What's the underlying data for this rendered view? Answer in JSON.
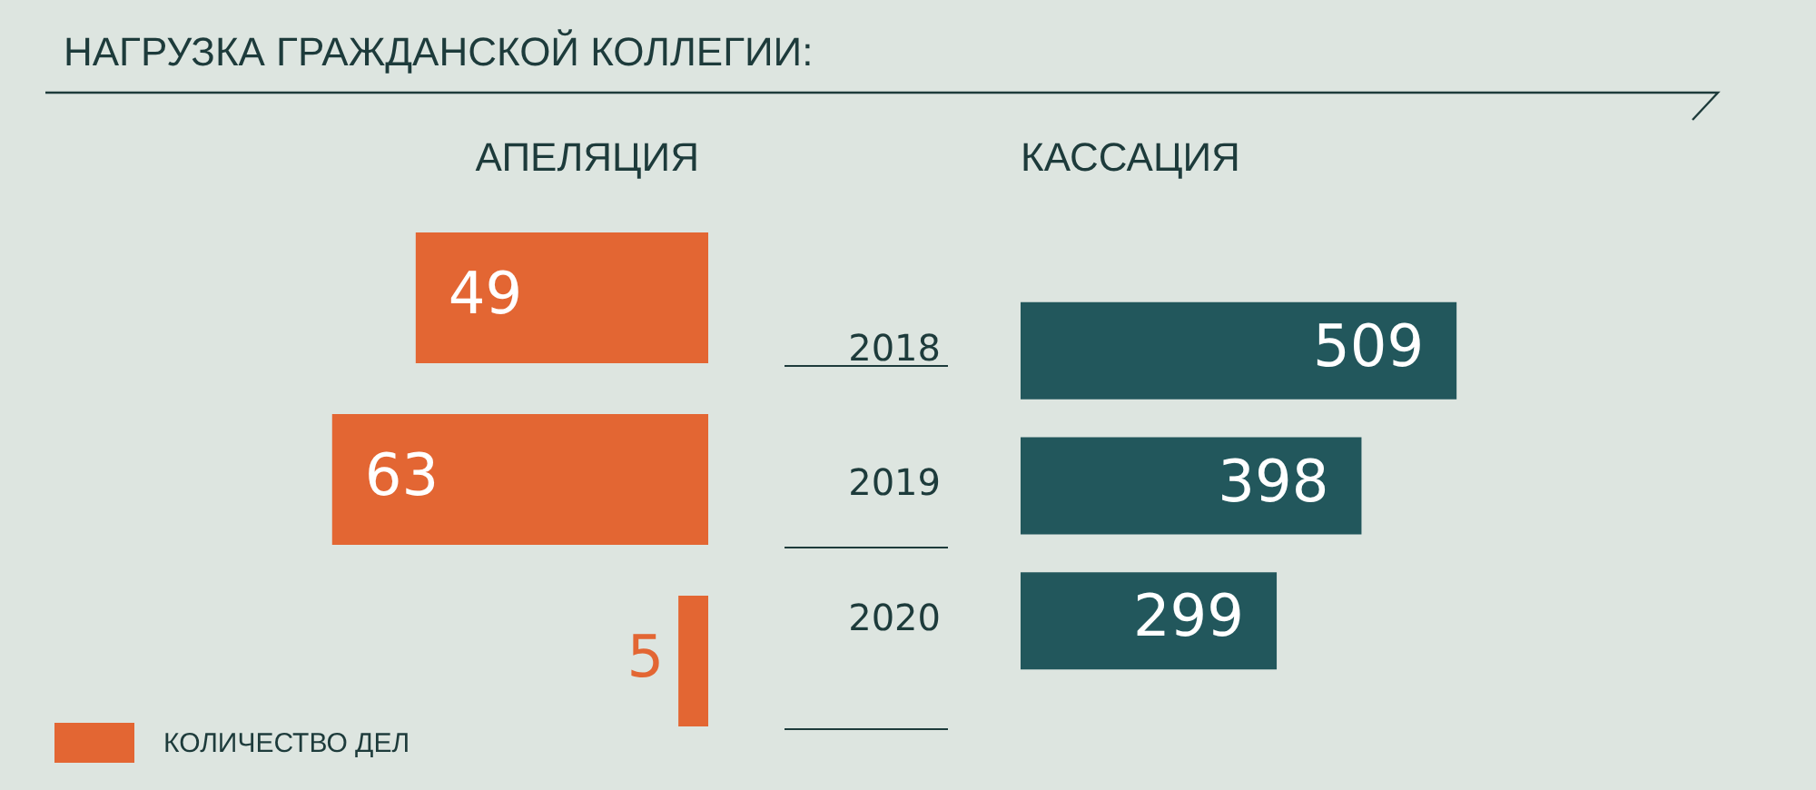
{
  "chart_data": [
    {
      "type": "bar",
      "title": "НАГРУЗКА ГРАЖДАНСКОЙ КОЛЛЕГИИ:",
      "subtitle": "АПЕЛЯЦИЯ",
      "orientation": "horizontal",
      "categories": [
        "2018",
        "2019",
        "2020"
      ],
      "tick_labels": false,
      "data_labels": true,
      "legend": "bottom left",
      "series": [
        {
          "name": "КОЛИЧЕСТВО ДЕЛ",
          "color": "#e36633",
          "values": [
            49,
            63,
            5
          ]
        }
      ]
    },
    {
      "type": "bar",
      "subtitle": "КАССАЦИЯ",
      "orientation": "horizontal",
      "categories": [
        "2018",
        "2019",
        "2020"
      ],
      "tick_labels": "y",
      "data_labels": true,
      "series": [
        {
          "color": "#22575c",
          "values": [
            509,
            398,
            299
          ]
        }
      ]
    }
  ]
}
